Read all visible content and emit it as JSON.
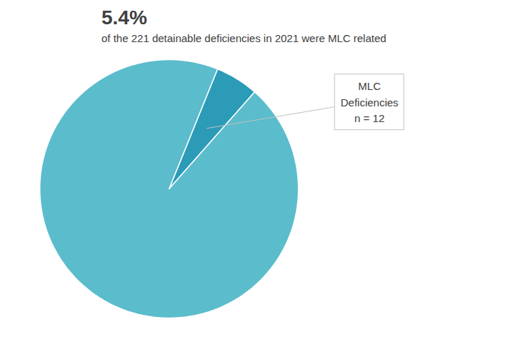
{
  "chart_data": {
    "type": "pie",
    "title": "5.4%",
    "subtitle": "of the 221 detainable deficiencies in 2021 were MLC related",
    "values": [
      5.4,
      94.6
    ],
    "colors": [
      "#2b9bb8",
      "#5bbccc"
    ],
    "annotations": [
      "MLC\nDeficiencies\nn = 12"
    ],
    "tick_labels": false
  }
}
